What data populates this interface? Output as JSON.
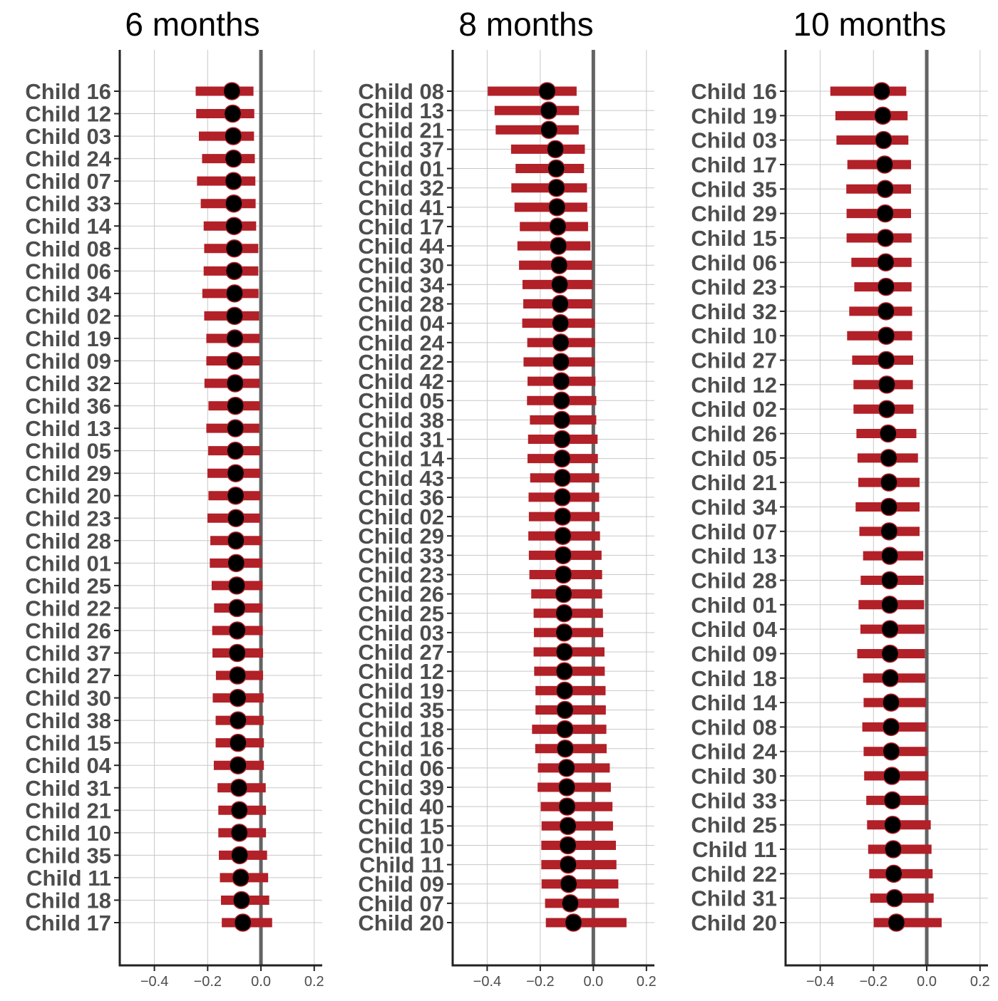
{
  "colors": {
    "interval": "#b22028",
    "point_fill": "#000000",
    "point_stroke": "#b22028",
    "reference_line": "#636363",
    "grid": "#c8c8c8",
    "label_text": "#4d4d4d"
  },
  "chart_data": [
    {
      "type": "scatter",
      "subtype": "dot-and-interval",
      "title": "6 months",
      "xlim": [
        -0.53,
        0.23
      ],
      "xticks": [
        -0.4,
        -0.2,
        0.0,
        0.2
      ],
      "xtick_labels": [
        "−0.4",
        "−0.2",
        "0.0",
        "0.2"
      ],
      "reference_x": 0.0,
      "grid": true,
      "categories": [
        "Child 16",
        "Child 12",
        "Child 03",
        "Child 24",
        "Child 07",
        "Child 33",
        "Child 14",
        "Child 08",
        "Child 06",
        "Child 34",
        "Child 02",
        "Child 19",
        "Child 09",
        "Child 32",
        "Child 36",
        "Child 13",
        "Child 05",
        "Child 29",
        "Child 20",
        "Child 23",
        "Child 28",
        "Child 01",
        "Child 25",
        "Child 22",
        "Child 26",
        "Child 37",
        "Child 27",
        "Child 30",
        "Child 38",
        "Child 15",
        "Child 04",
        "Child 31",
        "Child 21",
        "Child 10",
        "Child 35",
        "Child 11",
        "Child 18",
        "Child 17"
      ],
      "estimate": [
        -0.109,
        -0.106,
        -0.104,
        -0.103,
        -0.103,
        -0.102,
        -0.101,
        -0.1,
        -0.1,
        -0.099,
        -0.099,
        -0.098,
        -0.098,
        -0.097,
        -0.096,
        -0.096,
        -0.096,
        -0.095,
        -0.095,
        -0.094,
        -0.094,
        -0.093,
        -0.091,
        -0.09,
        -0.089,
        -0.089,
        -0.088,
        -0.087,
        -0.086,
        -0.086,
        -0.086,
        -0.083,
        -0.081,
        -0.081,
        -0.08,
        -0.076,
        -0.073,
        -0.068
      ],
      "lower": [
        -0.245,
        -0.243,
        -0.233,
        -0.221,
        -0.24,
        -0.226,
        -0.215,
        -0.213,
        -0.215,
        -0.22,
        -0.213,
        -0.205,
        -0.205,
        -0.212,
        -0.197,
        -0.205,
        -0.198,
        -0.201,
        -0.197,
        -0.201,
        -0.19,
        -0.192,
        -0.185,
        -0.176,
        -0.183,
        -0.182,
        -0.169,
        -0.181,
        -0.17,
        -0.17,
        -0.177,
        -0.163,
        -0.16,
        -0.16,
        -0.158,
        -0.154,
        -0.15,
        -0.147
      ],
      "upper": [
        -0.028,
        -0.025,
        -0.026,
        -0.023,
        -0.021,
        -0.02,
        -0.018,
        -0.01,
        -0.01,
        -0.009,
        -0.007,
        -0.005,
        -0.004,
        -0.005,
        -0.004,
        -0.006,
        -0.003,
        -0.003,
        -0.002,
        -0.003,
        0.002,
        0.004,
        0.006,
        0.006,
        0.007,
        0.008,
        0.008,
        0.01,
        0.01,
        0.011,
        0.011,
        0.018,
        0.019,
        0.019,
        0.023,
        0.027,
        0.031,
        0.042
      ]
    },
    {
      "type": "scatter",
      "subtype": "dot-and-interval",
      "title": "8 months",
      "xlim": [
        -0.53,
        0.23
      ],
      "xticks": [
        -0.4,
        -0.2,
        0.0,
        0.2
      ],
      "xtick_labels": [
        "−0.4",
        "−0.2",
        "0.0",
        "0.2"
      ],
      "reference_x": 0.0,
      "grid": true,
      "categories": [
        "Child 08",
        "Child 13",
        "Child 21",
        "Child 37",
        "Child 01",
        "Child 32",
        "Child 41",
        "Child 17",
        "Child 44",
        "Child 30",
        "Child 34",
        "Child 28",
        "Child 04",
        "Child 24",
        "Child 22",
        "Child 42",
        "Child 05",
        "Child 38",
        "Child 31",
        "Child 14",
        "Child 43",
        "Child 36",
        "Child 02",
        "Child 29",
        "Child 33",
        "Child 23",
        "Child 26",
        "Child 25",
        "Child 03",
        "Child 27",
        "Child 12",
        "Child 19",
        "Child 35",
        "Child 18",
        "Child 16",
        "Child 06",
        "Child 39",
        "Child 40",
        "Child 15",
        "Child 10",
        "Child 11",
        "Child 09",
        "Child 07",
        "Child 20"
      ],
      "estimate": [
        -0.174,
        -0.168,
        -0.167,
        -0.143,
        -0.14,
        -0.139,
        -0.137,
        -0.134,
        -0.132,
        -0.129,
        -0.127,
        -0.125,
        -0.124,
        -0.123,
        -0.122,
        -0.121,
        -0.12,
        -0.119,
        -0.118,
        -0.118,
        -0.117,
        -0.117,
        -0.116,
        -0.115,
        -0.114,
        -0.113,
        -0.112,
        -0.11,
        -0.11,
        -0.109,
        -0.109,
        -0.108,
        -0.107,
        -0.107,
        -0.106,
        -0.101,
        -0.1,
        -0.099,
        -0.096,
        -0.096,
        -0.095,
        -0.093,
        -0.087,
        -0.075
      ],
      "lower": [
        -0.398,
        -0.372,
        -0.368,
        -0.31,
        -0.293,
        -0.309,
        -0.297,
        -0.277,
        -0.286,
        -0.28,
        -0.267,
        -0.264,
        -0.268,
        -0.249,
        -0.263,
        -0.248,
        -0.25,
        -0.239,
        -0.246,
        -0.248,
        -0.238,
        -0.244,
        -0.243,
        -0.245,
        -0.243,
        -0.241,
        -0.234,
        -0.225,
        -0.224,
        -0.225,
        -0.223,
        -0.218,
        -0.218,
        -0.231,
        -0.219,
        -0.209,
        -0.21,
        -0.198,
        -0.195,
        -0.196,
        -0.196,
        -0.195,
        -0.182,
        -0.179
      ],
      "upper": [
        -0.063,
        -0.054,
        -0.055,
        -0.032,
        -0.035,
        -0.024,
        -0.023,
        -0.02,
        -0.011,
        -0.004,
        -0.002,
        -0.003,
        0.005,
        0.006,
        0.005,
        0.008,
        0.011,
        0.011,
        0.016,
        0.017,
        0.022,
        0.022,
        0.023,
        0.025,
        0.031,
        0.033,
        0.033,
        0.036,
        0.037,
        0.042,
        0.043,
        0.046,
        0.047,
        0.049,
        0.05,
        0.062,
        0.066,
        0.072,
        0.074,
        0.085,
        0.087,
        0.094,
        0.096,
        0.125
      ]
    },
    {
      "type": "scatter",
      "subtype": "dot-and-interval",
      "title": "10 months",
      "xlim": [
        -0.53,
        0.23
      ],
      "xticks": [
        -0.4,
        -0.2,
        0.0,
        0.2
      ],
      "xtick_labels": [
        "−0.4",
        "−0.2",
        "0.0",
        "0.2"
      ],
      "reference_x": 0.0,
      "grid": true,
      "categories": [
        "Child 16",
        "Child 19",
        "Child 03",
        "Child 17",
        "Child 35",
        "Child 29",
        "Child 15",
        "Child 06",
        "Child 23",
        "Child 32",
        "Child 10",
        "Child 27",
        "Child 12",
        "Child 02",
        "Child 26",
        "Child 05",
        "Child 21",
        "Child 34",
        "Child 07",
        "Child 13",
        "Child 28",
        "Child 01",
        "Child 04",
        "Child 09",
        "Child 18",
        "Child 14",
        "Child 08",
        "Child 24",
        "Child 30",
        "Child 33",
        "Child 25",
        "Child 11",
        "Child 22",
        "Child 31",
        "Child 20"
      ],
      "estimate": [
        -0.169,
        -0.165,
        -0.162,
        -0.158,
        -0.156,
        -0.156,
        -0.155,
        -0.154,
        -0.153,
        -0.153,
        -0.152,
        -0.152,
        -0.15,
        -0.15,
        -0.145,
        -0.143,
        -0.142,
        -0.142,
        -0.141,
        -0.139,
        -0.139,
        -0.139,
        -0.138,
        -0.138,
        -0.137,
        -0.134,
        -0.134,
        -0.133,
        -0.131,
        -0.129,
        -0.128,
        -0.126,
        -0.124,
        -0.121,
        -0.114
      ],
      "lower": [
        -0.362,
        -0.343,
        -0.339,
        -0.298,
        -0.302,
        -0.301,
        -0.301,
        -0.283,
        -0.272,
        -0.291,
        -0.299,
        -0.28,
        -0.275,
        -0.275,
        -0.264,
        -0.26,
        -0.257,
        -0.267,
        -0.253,
        -0.239,
        -0.248,
        -0.256,
        -0.249,
        -0.261,
        -0.239,
        -0.237,
        -0.242,
        -0.237,
        -0.235,
        -0.227,
        -0.224,
        -0.22,
        -0.216,
        -0.212,
        -0.199
      ],
      "upper": [
        -0.077,
        -0.072,
        -0.069,
        -0.059,
        -0.059,
        -0.059,
        -0.057,
        -0.057,
        -0.057,
        -0.055,
        -0.055,
        -0.051,
        -0.052,
        -0.05,
        -0.039,
        -0.033,
        -0.027,
        -0.027,
        -0.027,
        -0.013,
        -0.012,
        -0.01,
        -0.008,
        -0.007,
        -0.005,
        -0.003,
        0.0,
        0.002,
        0.004,
        0.005,
        0.015,
        0.018,
        0.022,
        0.026,
        0.056
      ]
    }
  ]
}
